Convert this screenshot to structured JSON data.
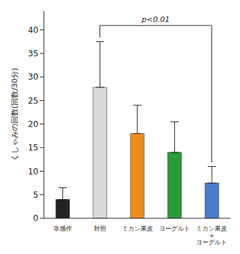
{
  "chart_data": {
    "type": "bar",
    "categories": [
      "非感作",
      "対照",
      "ミカン果皮",
      "ヨーグルト",
      "ミカン果皮\n+\nヨーグルト"
    ],
    "values": [
      4,
      27.8,
      18,
      14,
      7.5
    ],
    "errors": [
      2.5,
      9.7,
      6,
      6.5,
      3.5
    ],
    "colors": [
      "#222222",
      "#d9d9d9",
      "#f08a1c",
      "#2a9a3a",
      "#4a7ccc"
    ],
    "y_label": "くしゃみの回数(回数/30分)",
    "ylim": [
      0,
      44
    ],
    "yticks": [
      0,
      5,
      10,
      15,
      20,
      25,
      30,
      35,
      40
    ],
    "grid": false,
    "annotations": [
      {
        "text": "p<0.01",
        "from": "対照",
        "to": "ミカン果皮\n+\nヨーグルト"
      }
    ]
  }
}
